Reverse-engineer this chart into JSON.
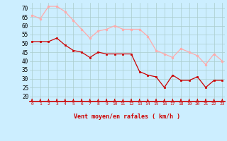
{
  "x": [
    0,
    1,
    2,
    3,
    4,
    5,
    6,
    7,
    8,
    9,
    10,
    11,
    12,
    13,
    14,
    15,
    16,
    17,
    18,
    19,
    20,
    21,
    22,
    23
  ],
  "wind_mean": [
    51,
    51,
    51,
    53,
    49,
    46,
    45,
    42,
    45,
    44,
    44,
    44,
    44,
    34,
    32,
    31,
    25,
    32,
    29,
    29,
    31,
    25,
    29,
    29
  ],
  "wind_gust": [
    66,
    64,
    71,
    71,
    68,
    63,
    58,
    53,
    57,
    58,
    60,
    58,
    58,
    58,
    54,
    46,
    44,
    42,
    47,
    45,
    43,
    38,
    44,
    40
  ],
  "mean_color": "#cc0000",
  "gust_color": "#ffaaaa",
  "bg_color": "#cceeff",
  "grid_color": "#aacccc",
  "xlabel": "Vent moyen/en rafales ( km/h )",
  "ylabel_ticks": [
    20,
    25,
    30,
    35,
    40,
    45,
    50,
    55,
    60,
    65,
    70
  ],
  "ylim": [
    17,
    73
  ],
  "xlim": [
    -0.3,
    23.3
  ],
  "tick_color": "#cc0000",
  "label_color": "#cc0000"
}
